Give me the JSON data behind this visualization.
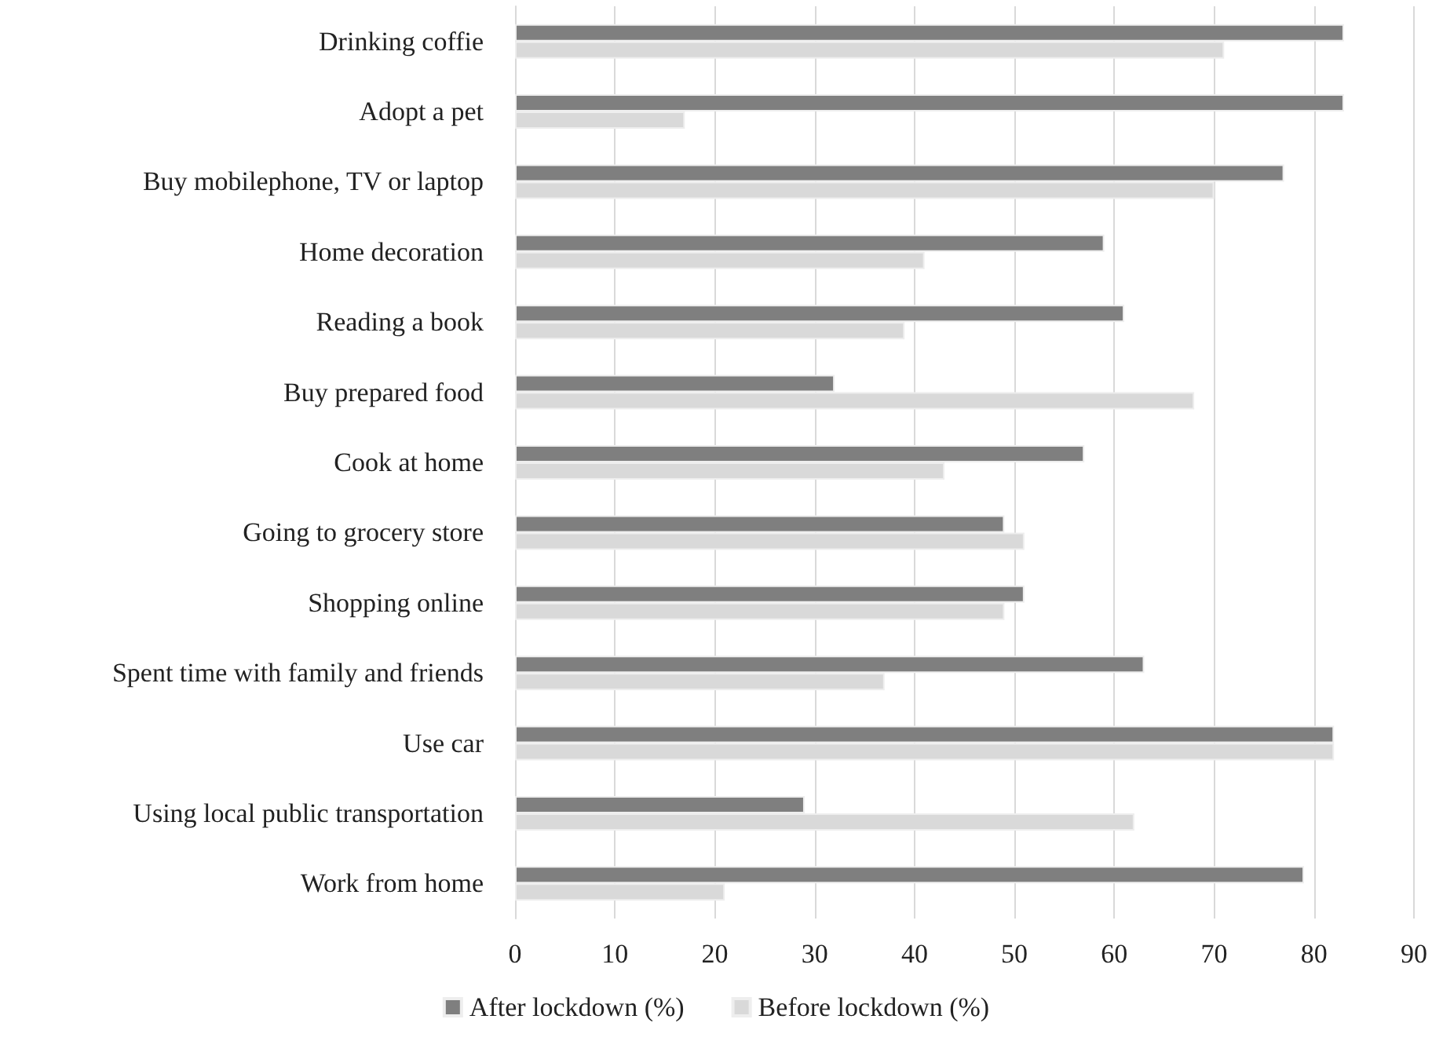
{
  "chart_data": {
    "type": "bar",
    "orientation": "horizontal",
    "categories": [
      "Drinking coffie",
      "Adopt a pet",
      "Buy mobilephone, TV or laptop",
      "Home decoration",
      "Reading a book",
      "Buy prepared food",
      "Cook at home",
      "Going to grocery store",
      "Shopping online",
      "Spent time with family and friends",
      "Use car",
      "Using local public transportation",
      "Work from home"
    ],
    "series": [
      {
        "name": "After lockdown (%)",
        "color": "#7f7f7f",
        "values": [
          83,
          83,
          77,
          59,
          61,
          32,
          57,
          49,
          51,
          63,
          82,
          29,
          79
        ]
      },
      {
        "name": "Before lockdown (%)",
        "color": "#d9d9d9",
        "values": [
          71,
          17,
          70,
          41,
          39,
          68,
          43,
          51,
          49,
          37,
          82,
          62,
          21
        ]
      }
    ],
    "xlim": [
      0,
      90
    ],
    "xticks": [
      0,
      10,
      20,
      30,
      40,
      50,
      60,
      70,
      80,
      90
    ],
    "grid": "x",
    "legend": "bottom"
  }
}
